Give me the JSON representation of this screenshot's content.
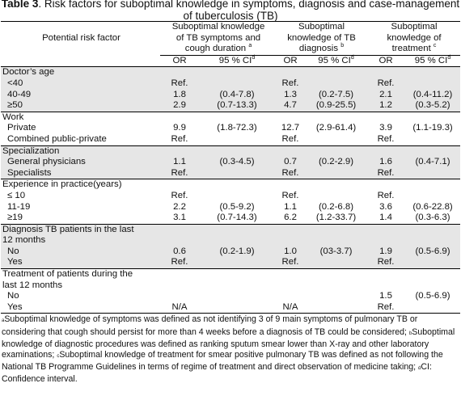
{
  "title": {
    "label": "Table 3",
    "text": ". Risk factors for suboptimal knowledge in symptoms, diagnosis and case-management of tuberculosis (TB)"
  },
  "header": {
    "risk_factor": "Potential risk factor",
    "groups": [
      {
        "line1": "Suboptimal knowledge",
        "line2": "of TB symptoms and",
        "line3": "cough duration",
        "mark": "a"
      },
      {
        "line1": "Suboptimal",
        "line2": "knowledge of TB",
        "line3": "diagnosis",
        "mark": "b"
      },
      {
        "line1": "Suboptimal",
        "line2": "knowledge of",
        "line3": "treatment",
        "mark": "c"
      }
    ],
    "or": "OR",
    "ci": "95 % CI",
    "ci_mark": "d"
  },
  "sections": [
    {
      "title": "Doctor’s age",
      "rows": [
        {
          "label": "<40",
          "v": [
            "Ref.",
            "",
            "Ref.",
            "",
            "Ref.",
            ""
          ]
        },
        {
          "label": "40-49",
          "v": [
            "1.8",
            "(0.4-7.8)",
            "1.3",
            "(0.2-7.5)",
            "2.1",
            "(0.4-11.2)"
          ]
        },
        {
          "label": "≥50",
          "v": [
            "2.9",
            "(0.7-13.3)",
            "4.7",
            "(0.9-25.5)",
            "1.2",
            "(0.3-5.2)"
          ]
        }
      ]
    },
    {
      "title": "Work",
      "rows": [
        {
          "label": "Private",
          "v": [
            "9.9",
            "(1.8-72.3)",
            "12.7",
            "(2.9-61.4)",
            "3.9",
            "(1.1-19.3)"
          ]
        },
        {
          "label": "Combined public-private",
          "v": [
            "Ref.",
            "",
            "Ref.",
            "",
            "Ref.",
            ""
          ]
        }
      ]
    },
    {
      "title": "Specialization",
      "rows": [
        {
          "label": "General physicians",
          "v": [
            "1.1",
            "(0.3-4.5)",
            "0.7",
            "(0.2-2.9)",
            "1.6",
            "(0.4-7.1)"
          ]
        },
        {
          "label": "Specialists",
          "v": [
            "Ref.",
            "",
            "Ref.",
            "",
            "Ref.",
            ""
          ]
        }
      ]
    },
    {
      "title": "Experience in practice(years)",
      "rows": [
        {
          "label": "≤ 10",
          "v": [
            "Ref.",
            "",
            "Ref.",
            "",
            "Ref.",
            ""
          ]
        },
        {
          "label": "11-19",
          "v": [
            "2.2",
            "(0.5-9.2)",
            "1.1",
            "(0.2-6.8)",
            "3.6",
            "(0.6-22.8)"
          ]
        },
        {
          "label": "≥19",
          "v": [
            "3.1",
            "(0.7-14.3)",
            "6.2",
            "(1.2-33.7)",
            "1.4",
            "(0.3-6.3)"
          ]
        }
      ]
    },
    {
      "title_line1": "Diagnosis TB patients in the last",
      "title_line2": "12 months",
      "rows": [
        {
          "label": "No",
          "v": [
            "0.6",
            "(0.2-1.9)",
            "1.0",
            "(03-3.7)",
            "1.9",
            "(0.5-6.9)"
          ]
        },
        {
          "label": "Yes",
          "v": [
            "Ref.",
            "",
            "Ref.",
            "",
            "Ref.",
            ""
          ]
        }
      ]
    },
    {
      "title_line1": "Treatment of patients during the",
      "title_line2": "last 12 months",
      "rows": [
        {
          "label": "No",
          "v": [
            "",
            "",
            "",
            "",
            "1.5",
            "(0.5-6.9)"
          ]
        },
        {
          "label": "Yes",
          "v": [
            "N/A",
            "",
            "N/A",
            "",
            "Ref.",
            ""
          ]
        }
      ]
    }
  ],
  "footnotes": {
    "a_mark": "a",
    "a": "Suboptimal knowledge of symptoms was defined as not identifying 3 of 9 main symptoms of pulmonary TB or considering that cough should persist for more than 4 weeks before a diagnosis of TB could be considered;",
    "b_mark": "b",
    "b": "Suboptimal knowledge of diagnostic procedures was defined as ranking sputum smear lower than X-ray and other laboratory examinations;",
    "c_mark": "c",
    "c": "Suboptimal knowledge of treatment for smear positive pulmonary TB was defined as not following the National TB Programme Guidelines in terms of regime of treatment and direct observation of medicine taking;",
    "d_mark": "d",
    "d": "CI: Confidence interval."
  }
}
